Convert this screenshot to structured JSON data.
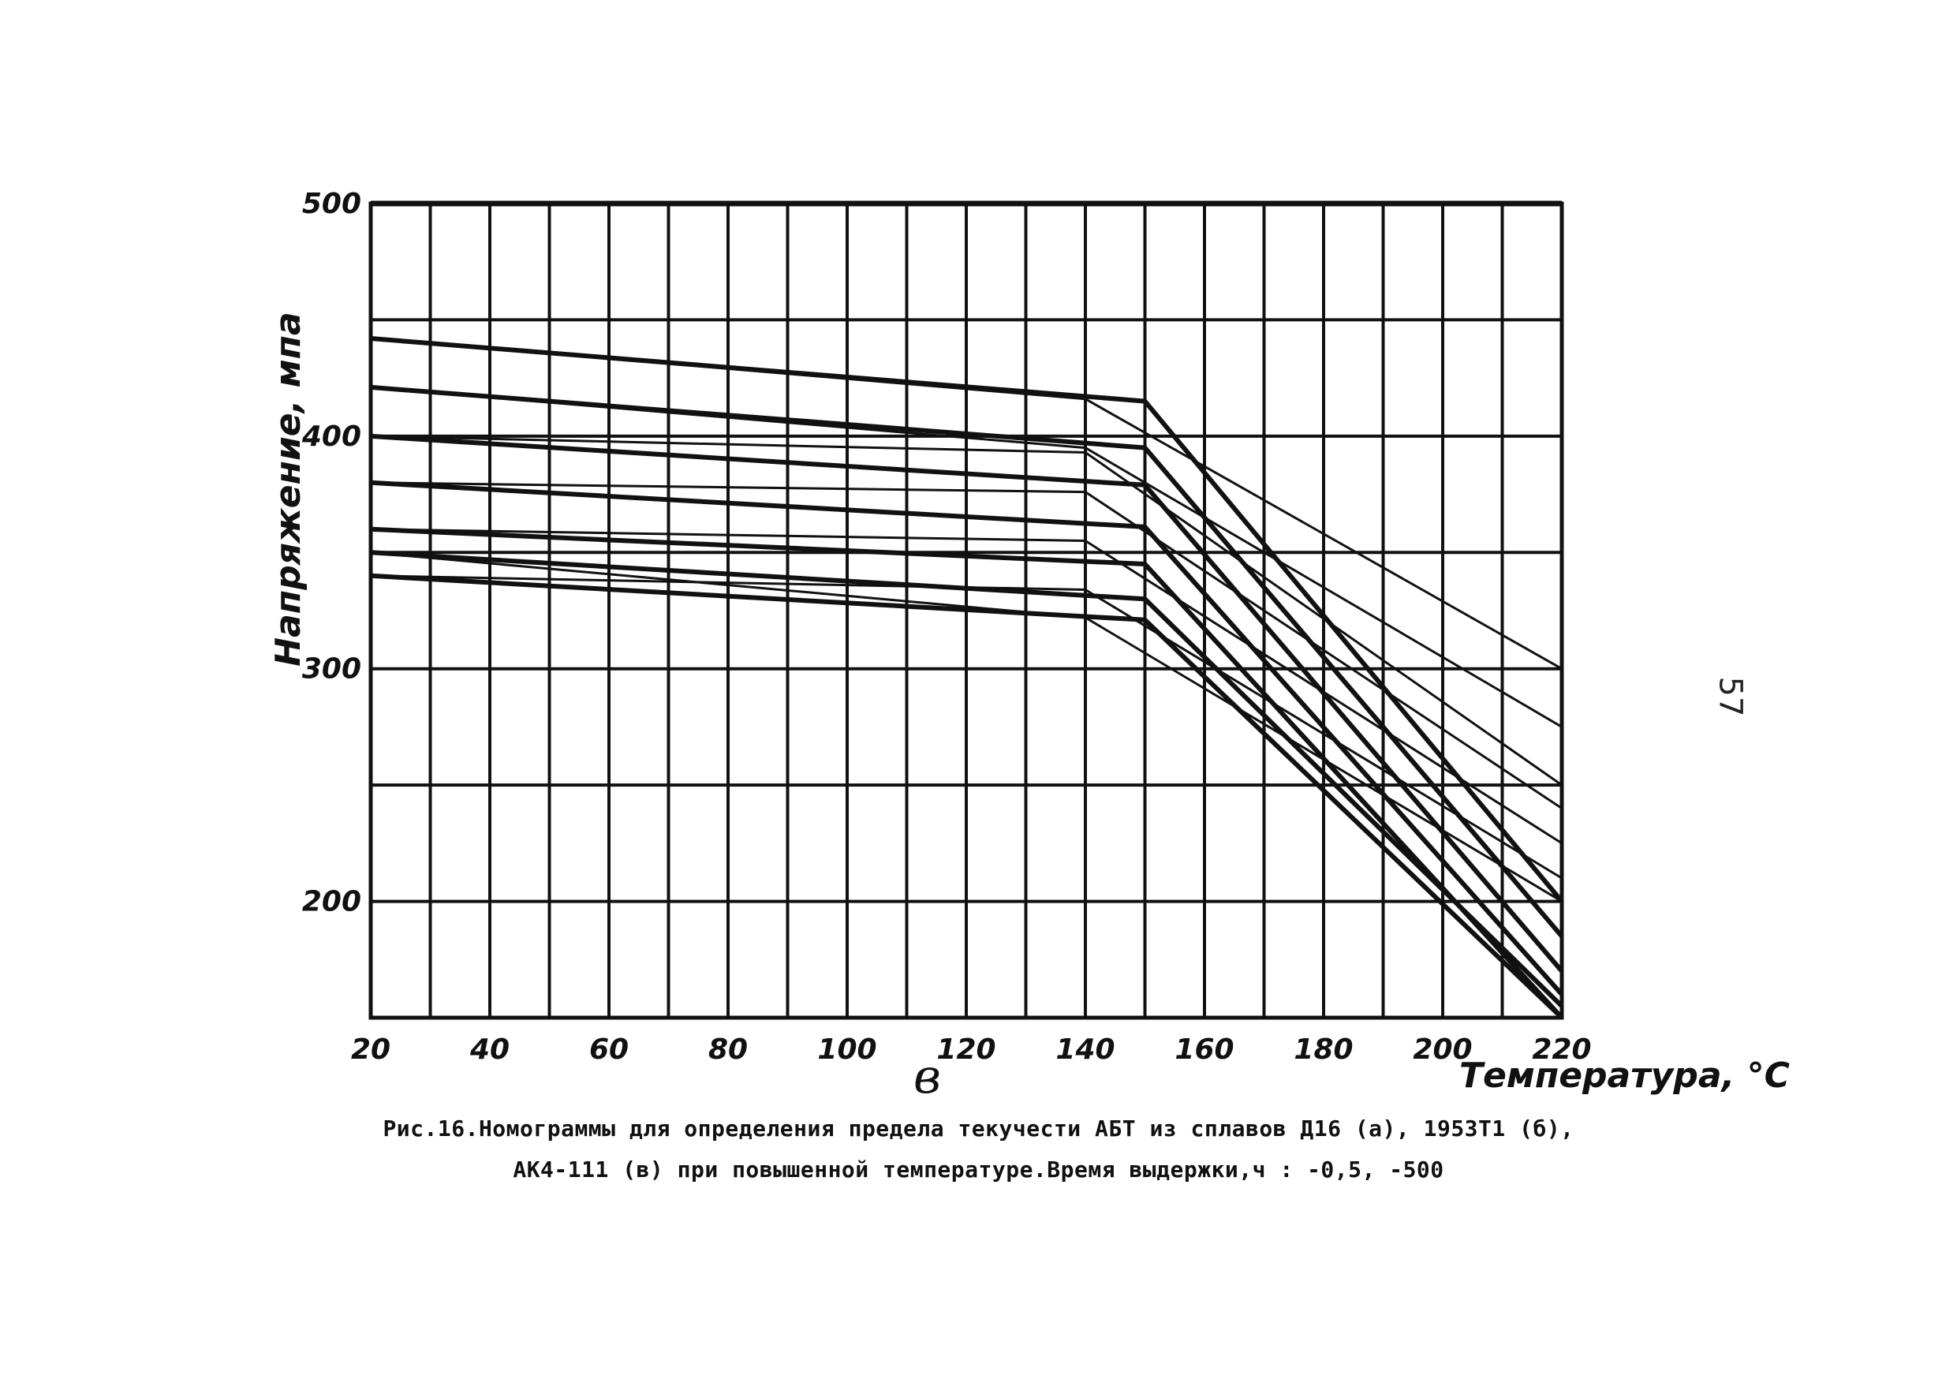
{
  "page": {
    "number": "57"
  },
  "caption": {
    "line1": "Рис.16.Номограммы для определения предела текучести АБТ из сплавов Д16 (а), 1953Т1 (б),",
    "line2": "АК4-111 (в) при повышенной температуре.Время выдержки,ч : -0,5, -500"
  },
  "chart_data": {
    "type": "line",
    "panel_label": "в",
    "xlabel": "Температура, °С",
    "ylabel": "Напряжение, мпа",
    "xlim": [
      20,
      220
    ],
    "ylim": [
      150,
      500
    ],
    "x_ticks": [
      20,
      40,
      60,
      80,
      100,
      120,
      140,
      160,
      180,
      200,
      220
    ],
    "x_tick_labels": [
      "20",
      "40",
      "60",
      "80",
      "100",
      "120",
      "140",
      "160",
      "180",
      "200",
      "220"
    ],
    "y_ticks": [
      200,
      300,
      400,
      500
    ],
    "y_tick_labels": [
      "200",
      "300",
      "400",
      "500"
    ],
    "grid": true,
    "series": [
      {
        "x": [
          20,
          150,
          220
        ],
        "y": [
          442,
          415,
          200
        ],
        "weight": "thick"
      },
      {
        "x": [
          20,
          140,
          220
        ],
        "y": [
          442,
          416,
          300
        ],
        "weight": "thin"
      },
      {
        "x": [
          20,
          150,
          220
        ],
        "y": [
          421,
          395,
          185
        ],
        "weight": "thick"
      },
      {
        "x": [
          20,
          140,
          220
        ],
        "y": [
          421,
          395,
          275
        ],
        "weight": "thin"
      },
      {
        "x": [
          20,
          150,
          220
        ],
        "y": [
          400,
          379,
          170
        ],
        "weight": "thick"
      },
      {
        "x": [
          20,
          140,
          220
        ],
        "y": [
          400,
          393,
          250
        ],
        "weight": "thin"
      },
      {
        "x": [
          20,
          150,
          220
        ],
        "y": [
          380,
          361,
          160
        ],
        "weight": "thick"
      },
      {
        "x": [
          20,
          140,
          220
        ],
        "y": [
          380,
          376,
          240
        ],
        "weight": "thin"
      },
      {
        "x": [
          20,
          150,
          220
        ],
        "y": [
          360,
          345,
          150
        ],
        "weight": "thick"
      },
      {
        "x": [
          20,
          140,
          220
        ],
        "y": [
          360,
          355,
          225
        ],
        "weight": "thin"
      },
      {
        "x": [
          20,
          150,
          220
        ],
        "y": [
          340,
          321,
          150
        ],
        "weight": "thick"
      },
      {
        "x": [
          20,
          140,
          220
        ],
        "y": [
          340,
          334,
          210
        ],
        "weight": "thin"
      },
      {
        "x": [
          20,
          150,
          220
        ],
        "y": [
          350,
          330,
          155
        ],
        "weight": "thick"
      },
      {
        "x": [
          20,
          140,
          220
        ],
        "y": [
          350,
          322,
          200
        ],
        "weight": "thin"
      }
    ]
  }
}
